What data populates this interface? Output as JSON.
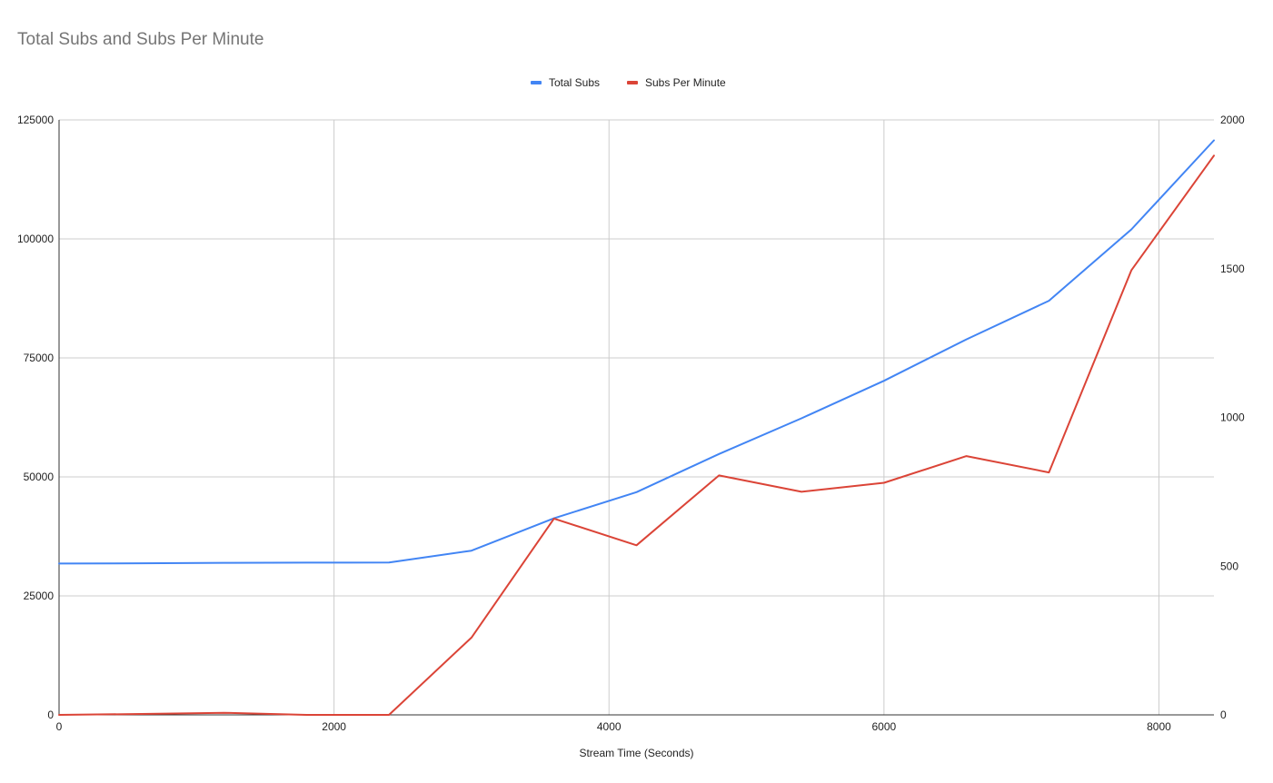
{
  "chart_data": {
    "type": "line",
    "title": "Total Subs and Subs Per Minute",
    "xlabel": "Stream Time (Seconds)",
    "ylabel": "",
    "y2label": "",
    "xlim": [
      0,
      8400
    ],
    "ylim": [
      0,
      125000
    ],
    "y2lim": [
      0,
      2000
    ],
    "x_ticks": [
      "0",
      "2000",
      "4000",
      "6000",
      "8000"
    ],
    "x_tick_values": [
      0,
      2000,
      4000,
      6000,
      8000
    ],
    "y_ticks": [
      "0",
      "25000",
      "50000",
      "75000",
      "100000",
      "125000"
    ],
    "y_tick_values": [
      0,
      25000,
      50000,
      75000,
      100000,
      125000
    ],
    "y2_ticks": [
      "0",
      "500",
      "1000",
      "1500",
      "2000"
    ],
    "y2_tick_values": [
      0,
      500,
      1000,
      1500,
      2000
    ],
    "grid": true,
    "legend_position": "top",
    "x": [
      0,
      600,
      1200,
      1800,
      2400,
      3000,
      3600,
      4200,
      4800,
      5400,
      6000,
      6600,
      7200,
      7800,
      8400
    ],
    "series": [
      {
        "name": "Total Subs",
        "axis": "left",
        "color": "#4285f4",
        "values": [
          31800,
          31850,
          31950,
          31980,
          32000,
          34500,
          41300,
          46800,
          54800,
          62300,
          70200,
          78900,
          87000,
          102000,
          120700
        ]
      },
      {
        "name": "Subs Per Minute",
        "axis": "right",
        "color": "#db4437",
        "values": [
          0,
          3,
          7,
          0,
          0,
          260,
          660,
          570,
          805,
          750,
          780,
          870,
          815,
          1495,
          1880
        ]
      }
    ]
  }
}
